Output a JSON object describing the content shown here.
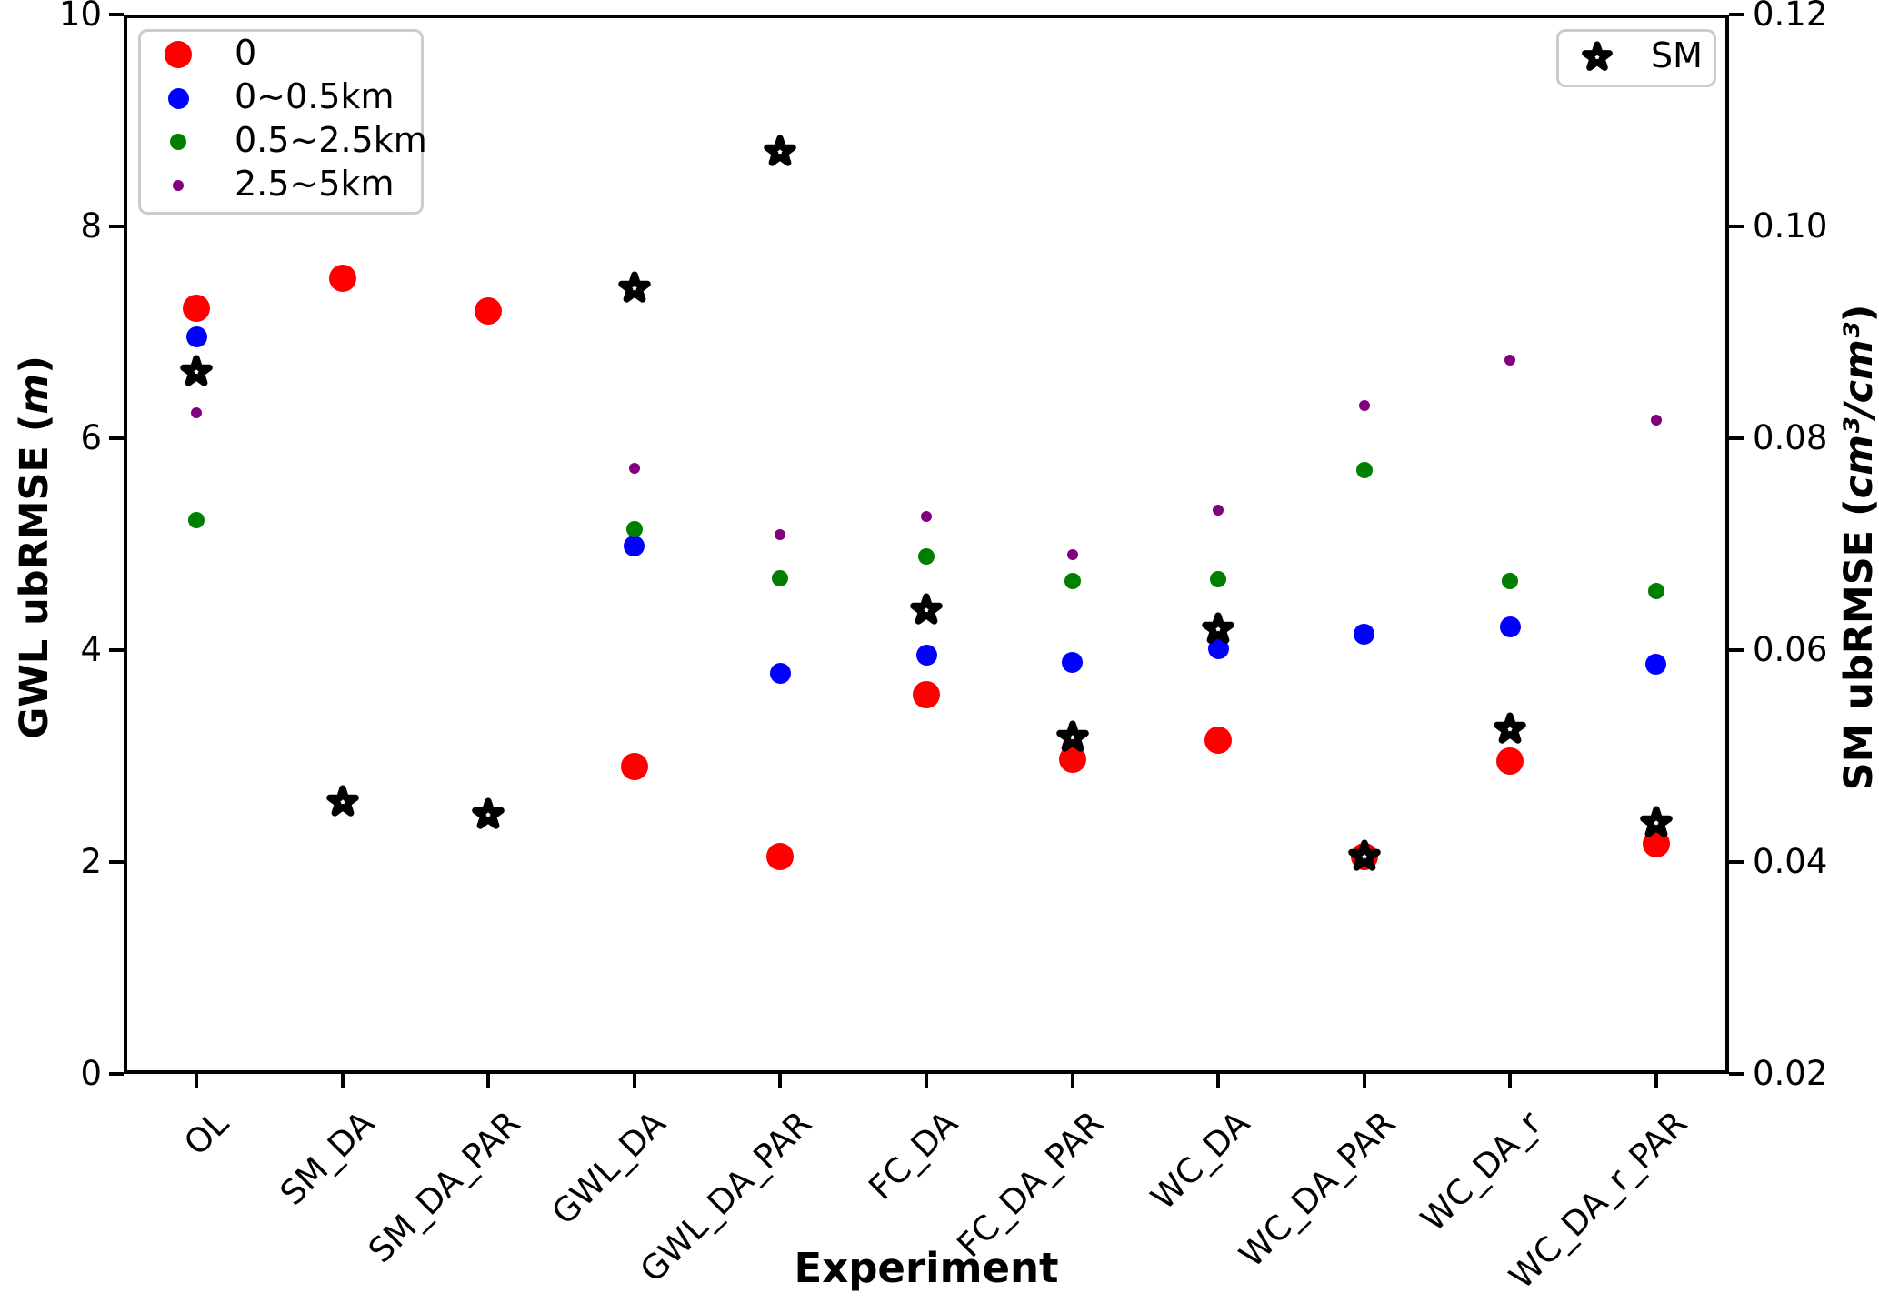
{
  "chart_data": {
    "type": "scatter",
    "title": "",
    "xlabel": "Experiment",
    "ylabel_left_parts": {
      "text": "GWL ubRMSE (",
      "italic": "m",
      "close": ")"
    },
    "ylabel_right_parts": {
      "text": "SM ubRMSE (",
      "italic": "cm³/cm³",
      "close": ")"
    },
    "categories": [
      "OL",
      "SM_DA",
      "SM_DA_PAR",
      "GWL_DA",
      "GWL_DA_PAR",
      "FC_DA",
      "FC_DA_PAR",
      "WC_DA",
      "WC_DA_PAR",
      "WC_DA_r",
      "WC_DA_r_PAR"
    ],
    "left_axis": {
      "label": "GWL ubRMSE (m)",
      "range": [
        0,
        10
      ],
      "ticks": [
        "0",
        "2",
        "4",
        "6",
        "8",
        "10"
      ]
    },
    "right_axis": {
      "label": "SM ubRMSE (cm3/cm3)",
      "range": [
        0.02,
        0.12
      ],
      "ticks": [
        "0.02",
        "0.04",
        "0.06",
        "0.08",
        "0.10",
        "0.12"
      ]
    },
    "grid": false,
    "legend_left_position": "upper left",
    "legend_right_position": "upper right",
    "series": [
      {
        "name": "0",
        "marker": "circle",
        "color": "#ff0000",
        "size": 30,
        "axis": "left",
        "values": [
          7.23,
          7.51,
          7.2,
          2.9,
          2.05,
          3.58,
          2.97,
          3.15,
          2.05,
          2.95,
          2.17
        ]
      },
      {
        "name": "0~0.5km",
        "marker": "circle",
        "color": "#0000ff",
        "size": 23,
        "axis": "left",
        "values": [
          6.96,
          null,
          null,
          4.98,
          3.78,
          3.95,
          3.88,
          4.01,
          4.15,
          4.22,
          3.87
        ]
      },
      {
        "name": "0.5~2.5km",
        "marker": "circle",
        "color": "#008000",
        "size": 18,
        "axis": "left",
        "values": [
          5.23,
          null,
          null,
          5.14,
          4.68,
          4.88,
          4.65,
          4.67,
          5.7,
          4.65,
          4.56
        ]
      },
      {
        "name": "2.5~5km",
        "marker": "circle",
        "color": "#800080",
        "size": 12,
        "axis": "left",
        "values": [
          6.24,
          null,
          null,
          5.72,
          5.09,
          5.26,
          4.9,
          5.32,
          6.31,
          6.74,
          6.17
        ]
      },
      {
        "name": "SM",
        "marker": "star",
        "color": "#000000",
        "size": 40,
        "axis": "right",
        "values": [
          0.0863,
          0.0457,
          0.0445,
          0.0942,
          0.107,
          0.0638,
          0.0518,
          0.062,
          0.0405,
          0.0525,
          0.0437
        ]
      }
    ]
  }
}
